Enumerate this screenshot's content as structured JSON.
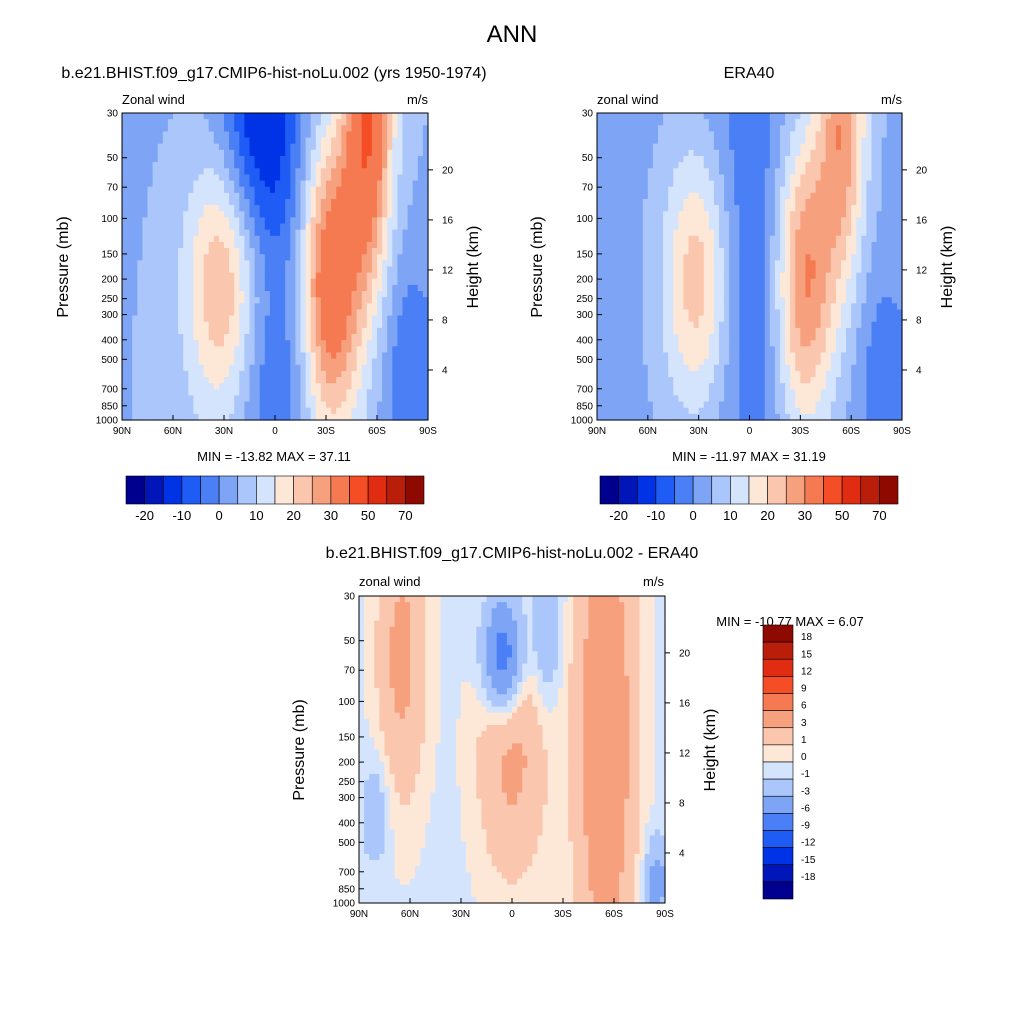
{
  "figure": {
    "title": "ANN"
  },
  "colors": {
    "main_scale": [
      "#00008e",
      "#0016b8",
      "#0033e6",
      "#1f5cf5",
      "#4a7ff5",
      "#7ea5f5",
      "#aac6fa",
      "#d4e4fc",
      "#fde8d8",
      "#fac6ae",
      "#f7a07e",
      "#f57a52",
      "#f54e26",
      "#e02c10",
      "#b81e0a",
      "#8e0a00"
    ],
    "diff_scale": [
      "#00008e",
      "#0016b8",
      "#0033e6",
      "#1f5cf5",
      "#4a7ff5",
      "#7ea5f5",
      "#aac6fa",
      "#d4e4fc",
      "#fde8d8",
      "#fac6ae",
      "#f7a07e",
      "#f57a52",
      "#f54e26",
      "#e02c10",
      "#b81e0a",
      "#8e0a00"
    ],
    "missing": "#ffffff"
  },
  "chart_data": [
    {
      "type": "heatmap",
      "title": "b.e21.BHIST.f09_g17.CMIP6-hist-noLu.002 (yrs 1950-1974)",
      "left_label": "Zonal wind",
      "right_label": "m/s",
      "xlabel": "",
      "ylabel": "Pressure (mb)",
      "y2label": "Height (km)",
      "x_ticks": [
        "90N",
        "60N",
        "30N",
        "0",
        "30S",
        "60S",
        "90S"
      ],
      "x_range": [
        90,
        -90
      ],
      "y_ticks": [
        "30",
        "50",
        "70",
        "100",
        "150",
        "200",
        "250",
        "300",
        "400",
        "500",
        "700",
        "850",
        "1000"
      ],
      "y_range": [
        1000,
        30
      ],
      "y_scale": "log",
      "y2_ticks": [
        "4",
        "8",
        "12",
        "16",
        "20"
      ],
      "stats": "MIN = -13.82  MAX =  37.11",
      "features": [
        {
          "lat": 30,
          "p": 200,
          "value": 25,
          "wlat": 16,
          "wlogp": 0.5
        },
        {
          "lat": -32,
          "p": 200,
          "value": 37,
          "wlat": 13,
          "wlogp": 0.55
        },
        {
          "lat": -55,
          "p": 30,
          "value": 35,
          "wlat": 10,
          "wlogp": 0.6
        },
        {
          "lat": 0,
          "p": 80,
          "value": -13,
          "wlat": 28,
          "wlogp": 0.6
        },
        {
          "lat": 12,
          "p": 30,
          "value": -13,
          "wlat": 15,
          "wlogp": 0.4
        },
        {
          "lat": 0,
          "p": 700,
          "value": -8,
          "wlat": 20,
          "wlogp": 0.3
        },
        {
          "lat": -80,
          "p": 600,
          "value": -10,
          "wlat": 12,
          "wlogp": 0.4
        }
      ],
      "base_value": 5
    },
    {
      "type": "heatmap",
      "title": "ERA40",
      "left_label": "zonal wind",
      "right_label": "m/s",
      "xlabel": "",
      "ylabel": "Pressure (mb)",
      "y2label": "Height (km)",
      "x_ticks": [
        "90N",
        "60N",
        "30N",
        "0",
        "30S",
        "60S",
        "90S"
      ],
      "x_range": [
        90,
        -90
      ],
      "y_ticks": [
        "30",
        "50",
        "70",
        "100",
        "150",
        "200",
        "250",
        "300",
        "400",
        "500",
        "700",
        "850",
        "1000"
      ],
      "y_range": [
        1000,
        30
      ],
      "y_scale": "log",
      "y2_ticks": [
        "4",
        "8",
        "12",
        "16",
        "20"
      ],
      "stats": "MIN = -11.97  MAX =  31.19",
      "features": [
        {
          "lat": 30,
          "p": 200,
          "value": 24,
          "wlat": 15,
          "wlogp": 0.5
        },
        {
          "lat": -32,
          "p": 200,
          "value": 31,
          "wlat": 13,
          "wlogp": 0.55
        },
        {
          "lat": -55,
          "p": 30,
          "value": 25,
          "wlat": 10,
          "wlogp": 0.6
        },
        {
          "lat": 0,
          "p": 150,
          "value": -11,
          "wlat": 28,
          "wlogp": 0.9
        },
        {
          "lat": -80,
          "p": 700,
          "value": -8,
          "wlat": 12,
          "wlogp": 0.4
        }
      ],
      "base_value": 4
    },
    {
      "type": "heatmap",
      "title": "b.e21.BHIST.f09_g17.CMIP6-hist-noLu.002 - ERA40",
      "left_label": "zonal wind",
      "right_label": "m/s",
      "xlabel": "",
      "ylabel": "Pressure (mb)",
      "y2label": "Height (km)",
      "x_ticks": [
        "90N",
        "60N",
        "30N",
        "0",
        "30S",
        "60S",
        "90S"
      ],
      "x_range": [
        90,
        -90
      ],
      "y_ticks": [
        "30",
        "50",
        "70",
        "100",
        "150",
        "200",
        "250",
        "300",
        "400",
        "500",
        "700",
        "850",
        "1000"
      ],
      "y_range": [
        1000,
        30
      ],
      "y_scale": "log",
      "y2_ticks": [
        "4",
        "8",
        "12",
        "16",
        "20"
      ],
      "stats": "MIN = -10.77  MAX =   6.07",
      "features": [
        {
          "lat": 65,
          "p": 60,
          "value": 4,
          "wlat": 10,
          "wlogp": 0.5
        },
        {
          "lat": -55,
          "p": 150,
          "value": 6,
          "wlat": 12,
          "wlogp": 0.9
        },
        {
          "lat": 0,
          "p": 170,
          "value": 4,
          "wlat": 14,
          "wlogp": 0.45
        },
        {
          "lat": 5,
          "p": 60,
          "value": -9,
          "wlat": 8,
          "wlogp": 0.2
        },
        {
          "lat": 80,
          "p": 350,
          "value": -2,
          "wlat": 6,
          "wlogp": 0.2
        },
        {
          "lat": -20,
          "p": 40,
          "value": -3,
          "wlat": 6,
          "wlogp": 0.3
        },
        {
          "lat": -85,
          "p": 800,
          "value": -4,
          "wlat": 5,
          "wlogp": 0.15
        }
      ],
      "base_value": -0.3
    }
  ],
  "colorbars": [
    {
      "orientation": "horizontal",
      "levels": [
        -20,
        -15,
        -10,
        -5,
        0,
        5,
        10,
        15,
        20,
        25,
        30,
        40,
        50,
        60,
        70
      ],
      "labels": [
        "-20",
        "-10",
        "0",
        "10",
        "20",
        "30",
        "50",
        "70"
      ]
    },
    {
      "orientation": "horizontal",
      "levels": [
        -20,
        -15,
        -10,
        -5,
        0,
        5,
        10,
        15,
        20,
        25,
        30,
        40,
        50,
        60,
        70
      ],
      "labels": [
        "-20",
        "-10",
        "0",
        "10",
        "20",
        "30",
        "50",
        "70"
      ]
    },
    {
      "orientation": "vertical",
      "levels": [
        -18,
        -15,
        -12,
        -9,
        -6,
        -3,
        -1,
        0,
        1,
        3,
        6,
        9,
        12,
        15,
        18
      ],
      "labels": [
        "18",
        "15",
        "12",
        "9",
        "6",
        "3",
        "1",
        "0",
        "-1",
        "-3",
        "-6",
        "-9",
        "-12",
        "-15",
        "-18"
      ]
    }
  ]
}
